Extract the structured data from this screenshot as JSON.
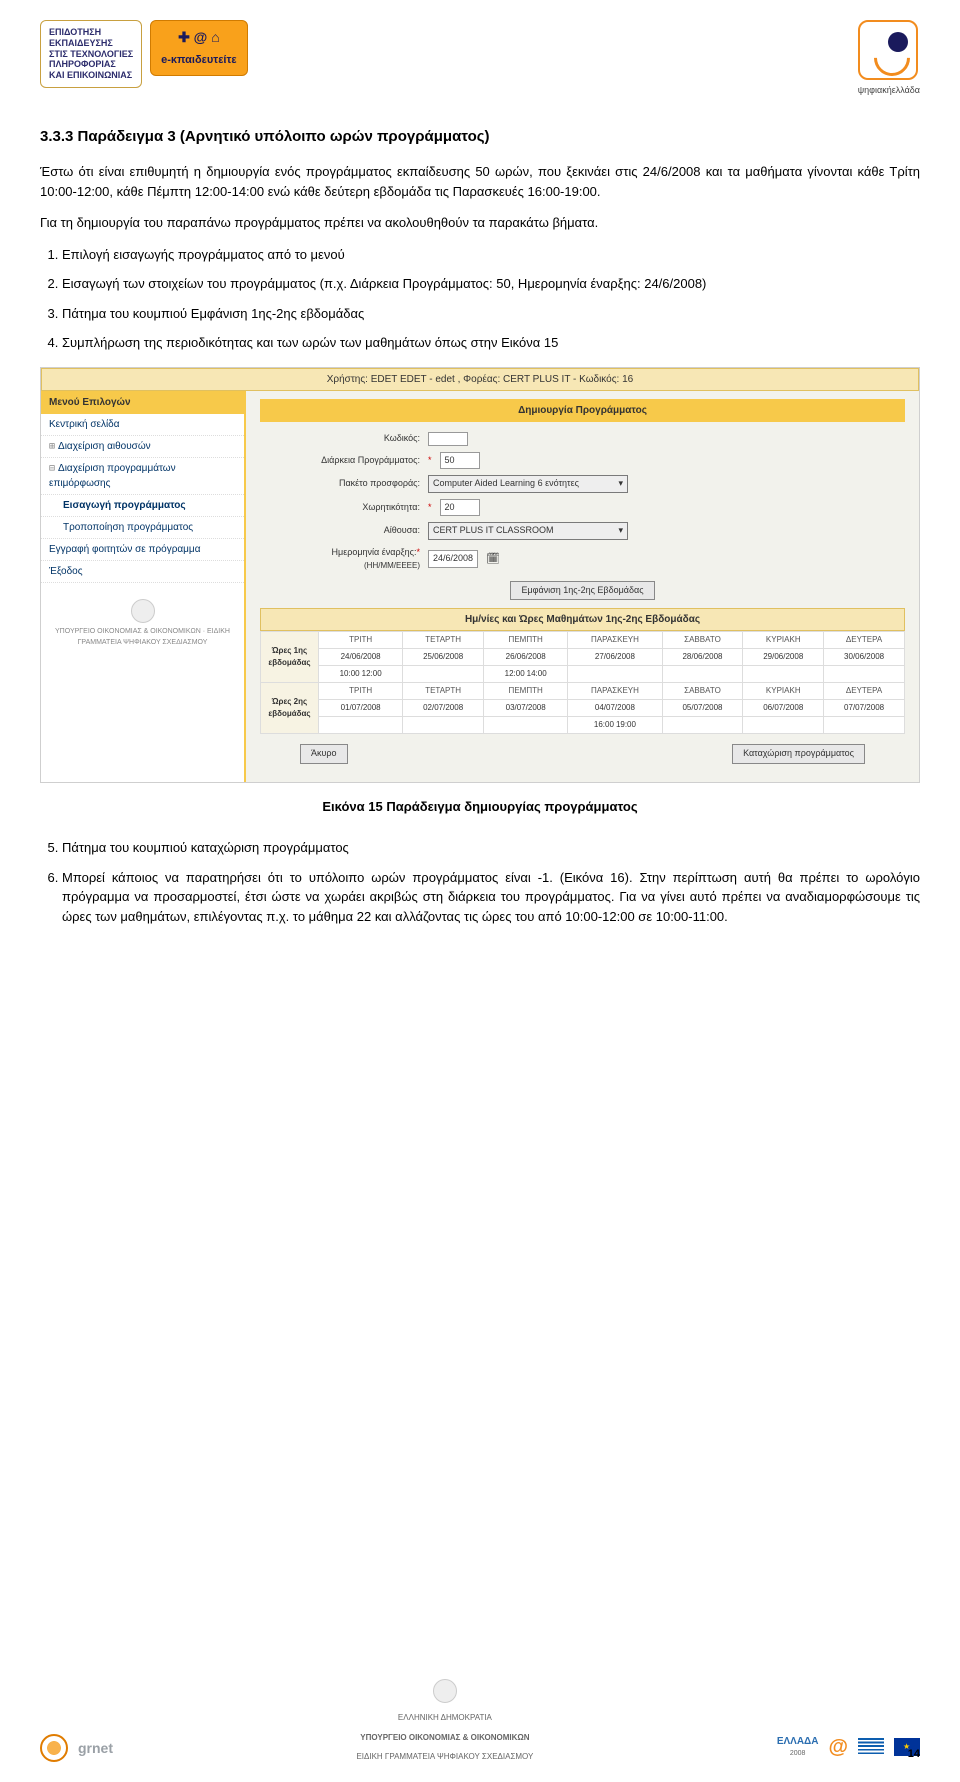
{
  "header": {
    "logo_left_lines": [
      "ΕΠΙΔΟΤΗΣΗ",
      "ΕΚΠΑΙΔΕΥΣΗΣ",
      "ΣΤΙΣ ΤΕΧΝΟΛΟΓΙΕΣ",
      "ΠΛΗΡΟΦΟΡΙΑΣ",
      "ΚΑΙ ΕΠΙΚΟΙΝΩΝΙΑΣ"
    ],
    "ekp_label": "e-κπαιδευτείτε",
    "logo_right_text": "ψηφιακήελλάδα"
  },
  "section": {
    "title": "3.3.3 Παράδειγμα 3 (Αρνητικό υπόλοιπο ωρών προγράμματος)",
    "intro": "Έστω ότι είναι επιθυμητή η δημιουργία ενός προγράμματος εκπαίδευσης 50 ωρών, που ξεκινάει στις 24/6/2008 και τα μαθήματα γίνονται κάθε Τρίτη 10:00-12:00, κάθε Πέμπτη 12:00-14:00 ενώ κάθε δεύτερη εβδομάδα τις Παρασκευές 16:00-19:00.",
    "intro2": "Για τη δημιουργία του παραπάνω προγράμματος πρέπει να ακολουθηθούν τα παρακάτω βήματα.",
    "steps_a": [
      "Επιλογή εισαγωγής προγράμματος από το μενού",
      "Εισαγωγή των στοιχείων του προγράμματος (π.χ. Διάρκεια Προγράμματος: 50, Ημερομηνία έναρξης: 24/6/2008)",
      "Πάτημα του κουμπιού Εμφάνιση 1ης-2ης εβδομάδας",
      "Συμπλήρωση της περιοδικότητας και των ωρών των μαθημάτων όπως στην Εικόνα 15"
    ],
    "caption": "Εικόνα 15 Παράδειγμα δημιουργίας προγράμματος",
    "steps_b_start": 5,
    "steps_b": [
      "Πάτημα του κουμπιού καταχώριση προγράμματος",
      "Μπορεί κάποιος να παρατηρήσει ότι το υπόλοιπο ωρών προγράμματος είναι -1. (Εικόνα 16). Στην περίπτωση αυτή θα πρέπει το ωρολόγιο πρόγραμμα να προσαρμοστεί, έτσι ώστε να χωράει ακριβώς στη διάρκεια του προγράμματος. Για να γίνει αυτό πρέπει να αναδιαμορφώσουμε τις ώρες των μαθημάτων, επιλέγοντας π.χ. το μάθημα 22 και αλλάζοντας τις ώρες του από 10:00-12:00 σε 10:00-11:00."
    ]
  },
  "screenshot": {
    "topbar": "Χρήστης: EDET EDET - edet , Φορέας: CERT PLUS IT - Κωδικός: 16",
    "menu_title": "Μενού Επιλογών",
    "menu_items": [
      {
        "label": "Κεντρική σελίδα",
        "sub": false,
        "toggle": ""
      },
      {
        "label": "Διαχείριση αιθουσών",
        "sub": false,
        "toggle": "⊞"
      },
      {
        "label": "Διαχείριση προγραμμάτων επιμόρφωσης",
        "sub": false,
        "toggle": "⊟"
      },
      {
        "label": "Εισαγωγή προγράμματος",
        "sub": true,
        "bold": true,
        "toggle": ""
      },
      {
        "label": "Τροποποίηση προγράμματος",
        "sub": true,
        "toggle": ""
      },
      {
        "label": "Εγγραφή φοιτητών σε πρόγραμμα",
        "sub": false,
        "toggle": ""
      },
      {
        "label": "Έξοδος",
        "sub": false,
        "toggle": ""
      }
    ],
    "gov_badge": "ΥΠΟΥΡΓΕΙΟ ΟΙΚΟΝΟΜΙΑΣ & ΟΙΚΟΝΟΜΙΚΩΝ · ΕΙΔΙΚΗ ΓΡΑΜΜΑΤΕΙΑ ΨΗΦΙΑΚΟΥ ΣΧΕΔΙΑΣΜΟΥ",
    "main_title": "Δημιουργία Προγράμματος",
    "form": {
      "code_label": "Κωδικός:",
      "code_value": "",
      "duration_label": "Διάρκεια Προγράμματος:",
      "duration_value": "50",
      "package_label": "Πακέτο προσφοράς:",
      "package_value": "Computer Aided Learning 6 ενότητες",
      "capacity_label": "Χωρητικότητα:",
      "capacity_value": "20",
      "room_label": "Αίθουσα:",
      "room_value": "CERT PLUS IT CLASSROOM",
      "startdate_label": "Ημερομηνία έναρξης:",
      "startdate_hint": "(ΗΗ/ΜΜ/ΕΕΕΕ)",
      "startdate_value": "24/6/2008",
      "req": "*"
    },
    "btn_show": "Εμφάνιση 1ης-2ης Εβδομάδας",
    "week_header": "Ημ/νίες και Ώρες Μαθημάτων 1ης-2ης Εβδομάδας",
    "days": [
      "ΤΡΙΤΗ",
      "ΤΕΤΑΡΤΗ",
      "ΠΕΜΠΤΗ",
      "ΠΑΡΑΣΚΕΥΗ",
      "ΣΑΒΒΑΤΟ",
      "ΚΥΡΙΑΚΗ",
      "ΔΕΥΤΕΡΑ"
    ],
    "row1_label": "Ώρες 1ης εβδομάδας",
    "row1_dates": [
      "24/06/2008",
      "25/06/2008",
      "26/06/2008",
      "27/06/2008",
      "28/06/2008",
      "29/06/2008",
      "30/06/2008"
    ],
    "row1_times": [
      [
        "10:00",
        "12:00"
      ],
      [
        "",
        ""
      ],
      [
        "12:00",
        "14:00"
      ],
      [
        "",
        ""
      ],
      [
        "",
        ""
      ],
      [
        "",
        ""
      ],
      [
        "",
        ""
      ]
    ],
    "row2_label": "Ώρες 2ης εβδομάδας",
    "row2_dates": [
      "01/07/2008",
      "02/07/2008",
      "03/07/2008",
      "04/07/2008",
      "05/07/2008",
      "06/07/2008",
      "07/07/2008"
    ],
    "row2_times": [
      [
        "",
        ""
      ],
      [
        "",
        ""
      ],
      [
        "",
        ""
      ],
      [
        "16:00",
        "19:00"
      ],
      [
        "",
        ""
      ],
      [
        "",
        ""
      ],
      [
        "",
        ""
      ]
    ],
    "btn_cancel": "Άκυρο",
    "btn_submit": "Καταχώριση προγράμματος"
  },
  "footer": {
    "grnet": "grnet",
    "grnet_sub": "",
    "ministry_line1": "ΕΛΛΗΝΙΚΗ ΔΗΜΟΚΡΑΤΙΑ",
    "ministry_line2": "ΥΠΟΥΡΓΕΙΟ ΟΙΚΟΝΟΜΙΑΣ & ΟΙΚΟΝΟΜΙΚΩΝ",
    "ministry_line3": "ΕΙΔΙΚΗ ΓΡΑΜΜΑΤΕΙΑ ΨΗΦΙΑΚΟΥ ΣΧΕΔΙΑΣΜΟΥ",
    "ellada": "ΕΛΛΑΔΑ",
    "pagenum": "14"
  }
}
